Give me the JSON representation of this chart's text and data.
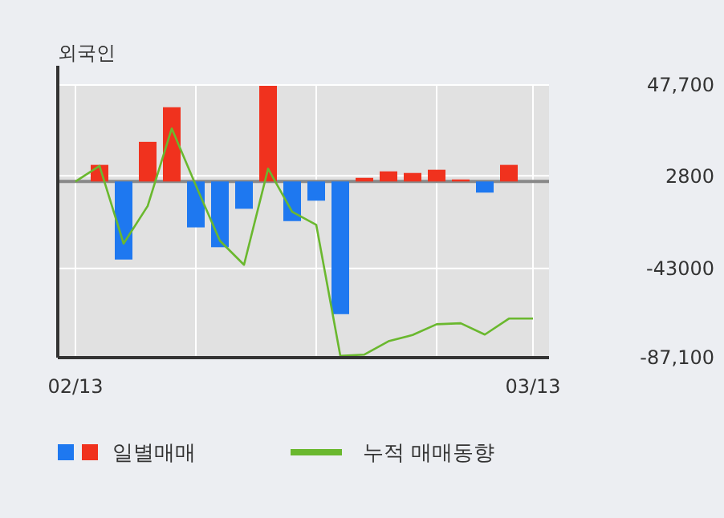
{
  "chart_data": {
    "type": "bar",
    "title": "외국인",
    "categories": [
      "02/13",
      null,
      null,
      null,
      null,
      null,
      null,
      null,
      null,
      null,
      null,
      null,
      null,
      null,
      null,
      null,
      null,
      null,
      null,
      "03/13"
    ],
    "series": [
      {
        "name": "일별매매",
        "colors": [
          null,
          "#f0321e",
          "#1e78f0",
          "#f0321e",
          "#f0321e",
          "#1e78f0",
          "#1e78f0",
          "#1e78f0",
          "#f0321e",
          "#1e78f0",
          "#1e78f0",
          "#1e78f0",
          "#f0321e",
          "#f0321e",
          "#f0321e",
          "#f0321e",
          "#f0321e",
          "#1e78f0",
          "#f0321e",
          null
        ],
        "values": [
          null,
          8200,
          -38600,
          19600,
          36700,
          -22700,
          -32500,
          -13500,
          47300,
          -19600,
          -9500,
          -65600,
          1800,
          5000,
          4200,
          5800,
          1000,
          -5500,
          8200,
          null
        ]
      },
      {
        "name": "누적 매매동향",
        "type": "line",
        "color": "#6ab82e",
        "values": [
          0,
          7700,
          -30700,
          -12100,
          26200,
          -2000,
          -29300,
          -41200,
          6300,
          -15000,
          -21400,
          -86200,
          -85600,
          -79000,
          -75900,
          -70600,
          -70100,
          -75700,
          -67800,
          -67800
        ]
      }
    ],
    "ylim": [
      -87100,
      47700
    ],
    "yticks": [
      {
        "value": 47700,
        "label": "47,700"
      },
      2800,
      -43000,
      {
        "value": -87100,
        "label": "-87,100"
      }
    ],
    "grid": true,
    "legend": "bottom"
  }
}
